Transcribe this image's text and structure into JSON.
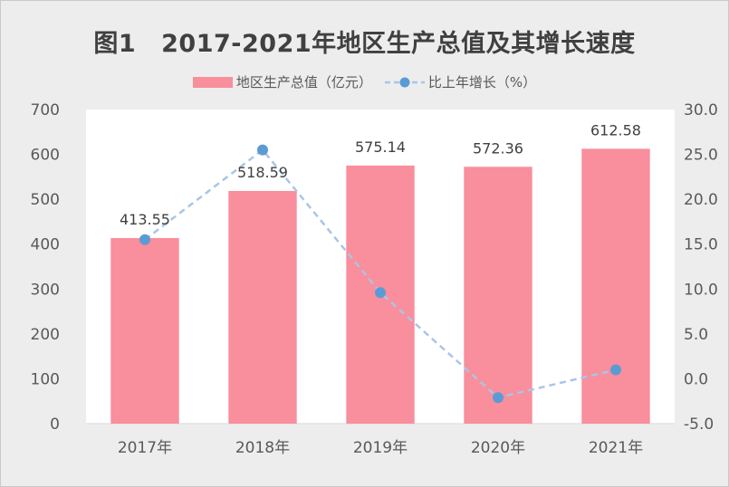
{
  "title": {
    "figure_label": "图1",
    "text": "2017-2021年地区生产总值及其增长速度"
  },
  "legend": {
    "bar_label": "地区生产总值（亿元）",
    "line_label": "比上年增长（%）"
  },
  "colors": {
    "bar": "#f98e9c",
    "line": "#a9c5e6",
    "marker": "#5b9bd5",
    "plot_bg": "#ffffff"
  },
  "chart_data": {
    "type": "bar",
    "categories": [
      "2017年",
      "2018年",
      "2019年",
      "2020年",
      "2021年"
    ],
    "series": [
      {
        "name": "地区生产总值（亿元）",
        "type": "bar",
        "axis": "left",
        "values": [
          413.55,
          518.59,
          575.14,
          572.36,
          612.58
        ],
        "data_labels": [
          "413.55",
          "518.59",
          "575.14",
          "572.36",
          "612.58"
        ]
      },
      {
        "name": "比上年增长（%）",
        "type": "line",
        "style": "dashed",
        "axis": "right",
        "values": [
          15.5,
          25.5,
          9.6,
          -2.1,
          1.0
        ]
      }
    ],
    "y_left": {
      "range": [
        0,
        700
      ],
      "ticks": [
        0,
        100,
        200,
        300,
        400,
        500,
        600,
        700
      ],
      "tick_labels": [
        "0",
        "100",
        "200",
        "300",
        "400",
        "500",
        "600",
        "700"
      ]
    },
    "y_right": {
      "range": [
        -5,
        30
      ],
      "ticks": [
        -5,
        0,
        5,
        10,
        15,
        20,
        25,
        30
      ],
      "tick_labels": [
        "-5.0",
        "0.0",
        "5.0",
        "10.0",
        "15.0",
        "20.0",
        "25.0",
        "30.0"
      ]
    },
    "grid": false,
    "legend_position": "top"
  }
}
